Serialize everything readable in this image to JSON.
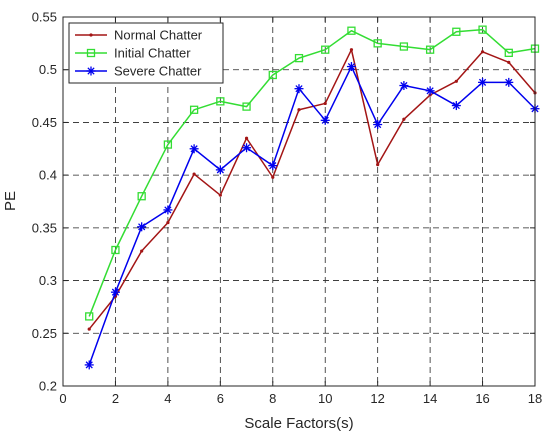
{
  "chart_data": {
    "type": "line",
    "title": "",
    "xlabel": "Scale Factors(s)",
    "ylabel": "PE",
    "xlim": [
      0,
      18
    ],
    "ylim": [
      0.2,
      0.55
    ],
    "xticks": [
      0,
      2,
      4,
      6,
      8,
      10,
      12,
      14,
      16,
      18
    ],
    "xtick_labels": [
      "0",
      "2",
      "4",
      "6",
      "8",
      "10",
      "12",
      "14",
      "16",
      "18"
    ],
    "yticks": [
      0.2,
      0.25,
      0.3,
      0.35,
      0.4,
      0.45,
      0.5,
      0.55
    ],
    "ytick_labels": [
      "0.2",
      "0.25",
      "0.3",
      "0.35",
      "0.4",
      "0.45",
      "0.5",
      "0.55"
    ],
    "grid": true,
    "legend_position": "top-left",
    "x": [
      1,
      2,
      3,
      4,
      5,
      6,
      7,
      8,
      9,
      10,
      11,
      12,
      13,
      14,
      15,
      16,
      17,
      18
    ],
    "series": [
      {
        "name": "Normal Chatter",
        "color": "#a31515",
        "marker": "point",
        "values": [
          0.254,
          0.285,
          0.328,
          0.355,
          0.401,
          0.381,
          0.435,
          0.398,
          0.462,
          0.468,
          0.519,
          0.41,
          0.453,
          0.476,
          0.489,
          0.517,
          0.507,
          0.478
        ]
      },
      {
        "name": "Initial Chatter",
        "color": "#33dd33",
        "marker": "square",
        "values": [
          0.266,
          0.329,
          0.38,
          0.429,
          0.462,
          0.47,
          0.465,
          0.495,
          0.511,
          0.519,
          0.537,
          0.525,
          0.522,
          0.519,
          0.536,
          0.538,
          0.516,
          0.52
        ]
      },
      {
        "name": "Severe Chatter",
        "color": "#0000ee",
        "marker": "asterisk",
        "values": [
          0.22,
          0.289,
          0.351,
          0.367,
          0.425,
          0.405,
          0.426,
          0.409,
          0.482,
          0.452,
          0.503,
          0.448,
          0.485,
          0.48,
          0.466,
          0.488,
          0.488,
          0.463
        ]
      }
    ]
  }
}
